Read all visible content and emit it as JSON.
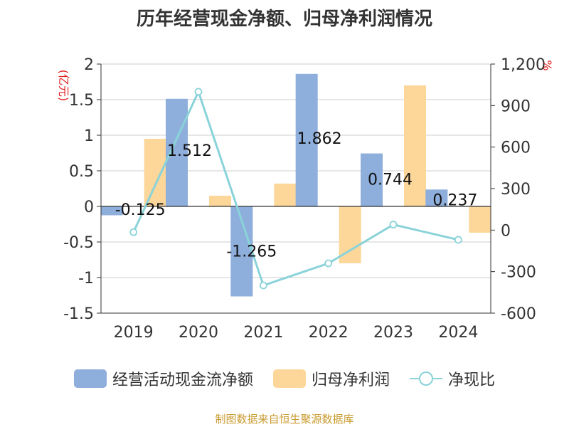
{
  "chart_data": {
    "type": "bar",
    "title": "历年经营现金净额、归母净利润情况",
    "categories": [
      "2019",
      "2020",
      "2021",
      "2022",
      "2023",
      "2024"
    ],
    "y_left": {
      "unit": "(亿元)",
      "ylim": [
        -1.5,
        2
      ],
      "ticks": [
        "2",
        "1.5",
        "1",
        "0.5",
        "0",
        "-0.5",
        "-1",
        "-1.5"
      ],
      "tick_values": [
        2,
        1.5,
        1,
        0.5,
        0,
        -0.5,
        -1,
        -1.5
      ]
    },
    "y_right": {
      "unit": "%",
      "ylim": [
        -600,
        1200
      ],
      "ticks": [
        "1,200",
        "900",
        "600",
        "300",
        "0",
        "-300",
        "-600"
      ],
      "tick_values": [
        1200,
        900,
        600,
        300,
        0,
        -300,
        -600
      ]
    },
    "series": [
      {
        "name": "经营活动现金流净额",
        "type": "bar",
        "axis": "left",
        "color": "#8eaedb",
        "values": [
          -0.125,
          1.512,
          -1.265,
          1.862,
          0.744,
          0.237
        ],
        "labels": [
          "-0.125",
          "1.512",
          "-1.265",
          "1.862",
          "0.744",
          "0.237"
        ]
      },
      {
        "name": "归母净利润",
        "type": "bar",
        "axis": "left",
        "color": "#fdd699",
        "values": [
          0.95,
          0.15,
          0.32,
          -0.8,
          1.7,
          -0.37
        ]
      },
      {
        "name": "净现比",
        "type": "line",
        "axis": "right",
        "color": "#8ad3d9",
        "values": [
          -15,
          1000,
          -400,
          -240,
          40,
          -70
        ]
      }
    ],
    "grid": true,
    "legend_position": "bottom"
  },
  "footer": {
    "source": "制图数据来自恒生聚源数据库"
  }
}
